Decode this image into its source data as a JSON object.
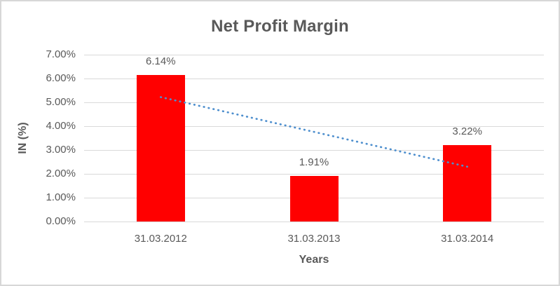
{
  "chart_data": {
    "type": "bar",
    "title": "Net Profit Margin",
    "categories": [
      "31.03.2012",
      "31.03.2013",
      "31.03.2014"
    ],
    "values": [
      6.14,
      1.91,
      3.22
    ],
    "data_labels": [
      "6.14%",
      "1.91%",
      "3.22%"
    ],
    "xlabel": "Years",
    "ylabel": "IN (%)",
    "ylim": [
      0,
      7
    ],
    "ytick_step": 1,
    "ytick_labels": [
      "0.00%",
      "1.00%",
      "2.00%",
      "3.00%",
      "4.00%",
      "5.00%",
      "6.00%",
      "7.00%"
    ],
    "grid": true,
    "legend": "none",
    "colors": {
      "bar": "#ff0000",
      "trendline": "#4e8fce",
      "gridline": "#d9d9d9",
      "text": "#595959",
      "border": "#d7d7d7"
    },
    "trendline": {
      "style": "dotted",
      "start_value": 5.22,
      "end_value": 2.3
    }
  }
}
